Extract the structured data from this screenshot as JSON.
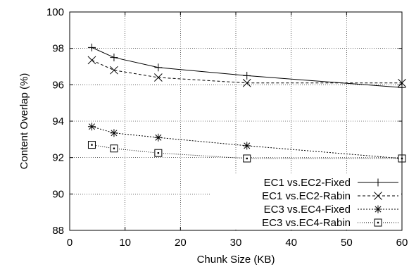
{
  "chart_data": {
    "type": "line",
    "xlabel": "Chunk Size (KB)",
    "ylabel": "Content Overlap (%)",
    "xlim": [
      0,
      60
    ],
    "ylim": [
      88,
      100
    ],
    "xticks": [
      0,
      10,
      20,
      30,
      40,
      50,
      60
    ],
    "yticks": [
      88,
      90,
      92,
      94,
      96,
      98,
      100
    ],
    "grid": true,
    "legend_position": "bottom-right",
    "x": [
      4,
      8,
      16,
      32,
      60
    ],
    "series": [
      {
        "name": "EC1 vs.EC2-Fixed",
        "marker": "plus",
        "line_style": "solid",
        "values": [
          98.05,
          97.5,
          96.95,
          96.5,
          95.85
        ]
      },
      {
        "name": "EC1 vs.EC2-Rabin",
        "marker": "cross",
        "line_style": "dashed",
        "values": [
          97.35,
          96.8,
          96.4,
          96.1,
          96.1
        ]
      },
      {
        "name": "EC3 vs.EC4-Fixed",
        "marker": "asterisk",
        "line_style": "dotted",
        "values": [
          93.7,
          93.35,
          93.1,
          92.65,
          91.95
        ]
      },
      {
        "name": "EC3 vs.EC4-Rabin",
        "marker": "square",
        "line_style": "fine-dotted",
        "values": [
          92.7,
          92.5,
          92.25,
          91.95,
          91.95
        ]
      }
    ]
  }
}
